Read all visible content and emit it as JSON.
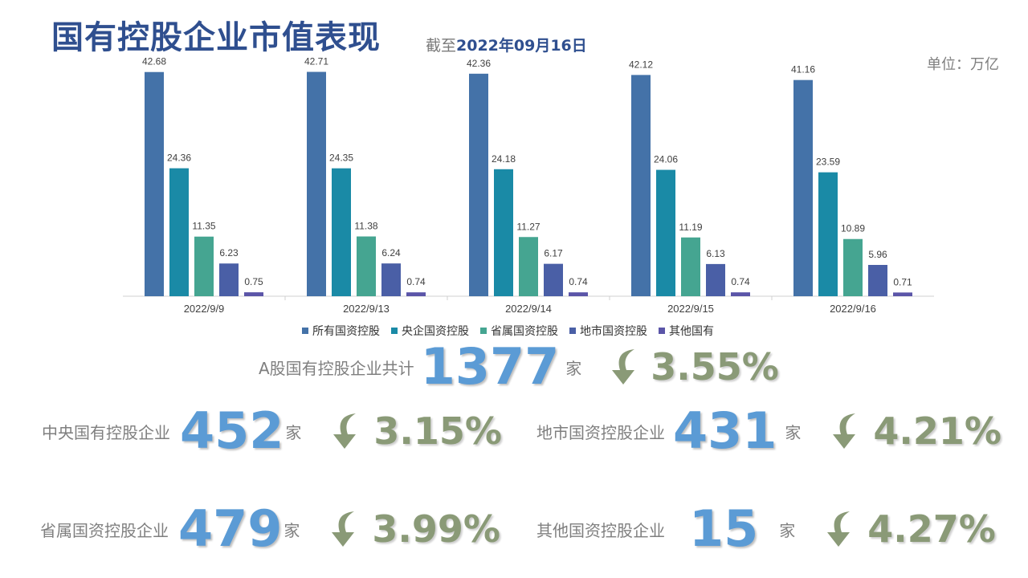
{
  "header": {
    "title": "国有控股企业市值表现",
    "asof_prefix": "截至",
    "asof_date": "2022年09月16日",
    "unit": "单位：万亿"
  },
  "chart_data": {
    "type": "bar",
    "categories": [
      "2022/9/9",
      "2022/9/13",
      "2022/9/14",
      "2022/9/15",
      "2022/9/16"
    ],
    "ylim": [
      0,
      46
    ],
    "grid": false,
    "legend_position": "bottom",
    "series": [
      {
        "name": "所有国资控股",
        "color": "#4472a8",
        "values": [
          42.68,
          42.71,
          42.36,
          42.12,
          41.16
        ]
      },
      {
        "name": "央企国资控股",
        "color": "#1a8aa6",
        "values": [
          24.36,
          24.35,
          24.18,
          24.06,
          23.59
        ]
      },
      {
        "name": "省属国资控股",
        "color": "#45a591",
        "values": [
          11.35,
          11.38,
          11.27,
          11.19,
          10.89
        ]
      },
      {
        "name": "地市国资控股",
        "color": "#4a5fa6",
        "values": [
          6.23,
          6.24,
          6.17,
          6.13,
          5.96
        ]
      },
      {
        "name": "其他国有",
        "color": "#5b55a8",
        "values": [
          0.75,
          0.74,
          0.74,
          0.74,
          0.71
        ]
      }
    ]
  },
  "stats": {
    "total": {
      "label": "A股国有控股企业共计",
      "count": "1377",
      "unit": "家",
      "change": "3.55%"
    },
    "central": {
      "label": "中央国有控股企业",
      "count": "452",
      "unit": "家",
      "change": "3.15%"
    },
    "city": {
      "label": "地市国资控股企业",
      "count": "431",
      "unit": "家",
      "change": "4.21%"
    },
    "provincial": {
      "label": "省属国资控股企业",
      "count": "479",
      "unit": "家",
      "change": "3.99%"
    },
    "other": {
      "label": "其他国资控股企业",
      "count": "15",
      "unit": "家",
      "change": "4.27%"
    }
  },
  "colors": {
    "accent_number": "#5b9bd5",
    "change": "#8a9a77",
    "title": "#2f4f8f"
  },
  "icons": {
    "change_arrow": "curved-down-arrow-icon"
  }
}
